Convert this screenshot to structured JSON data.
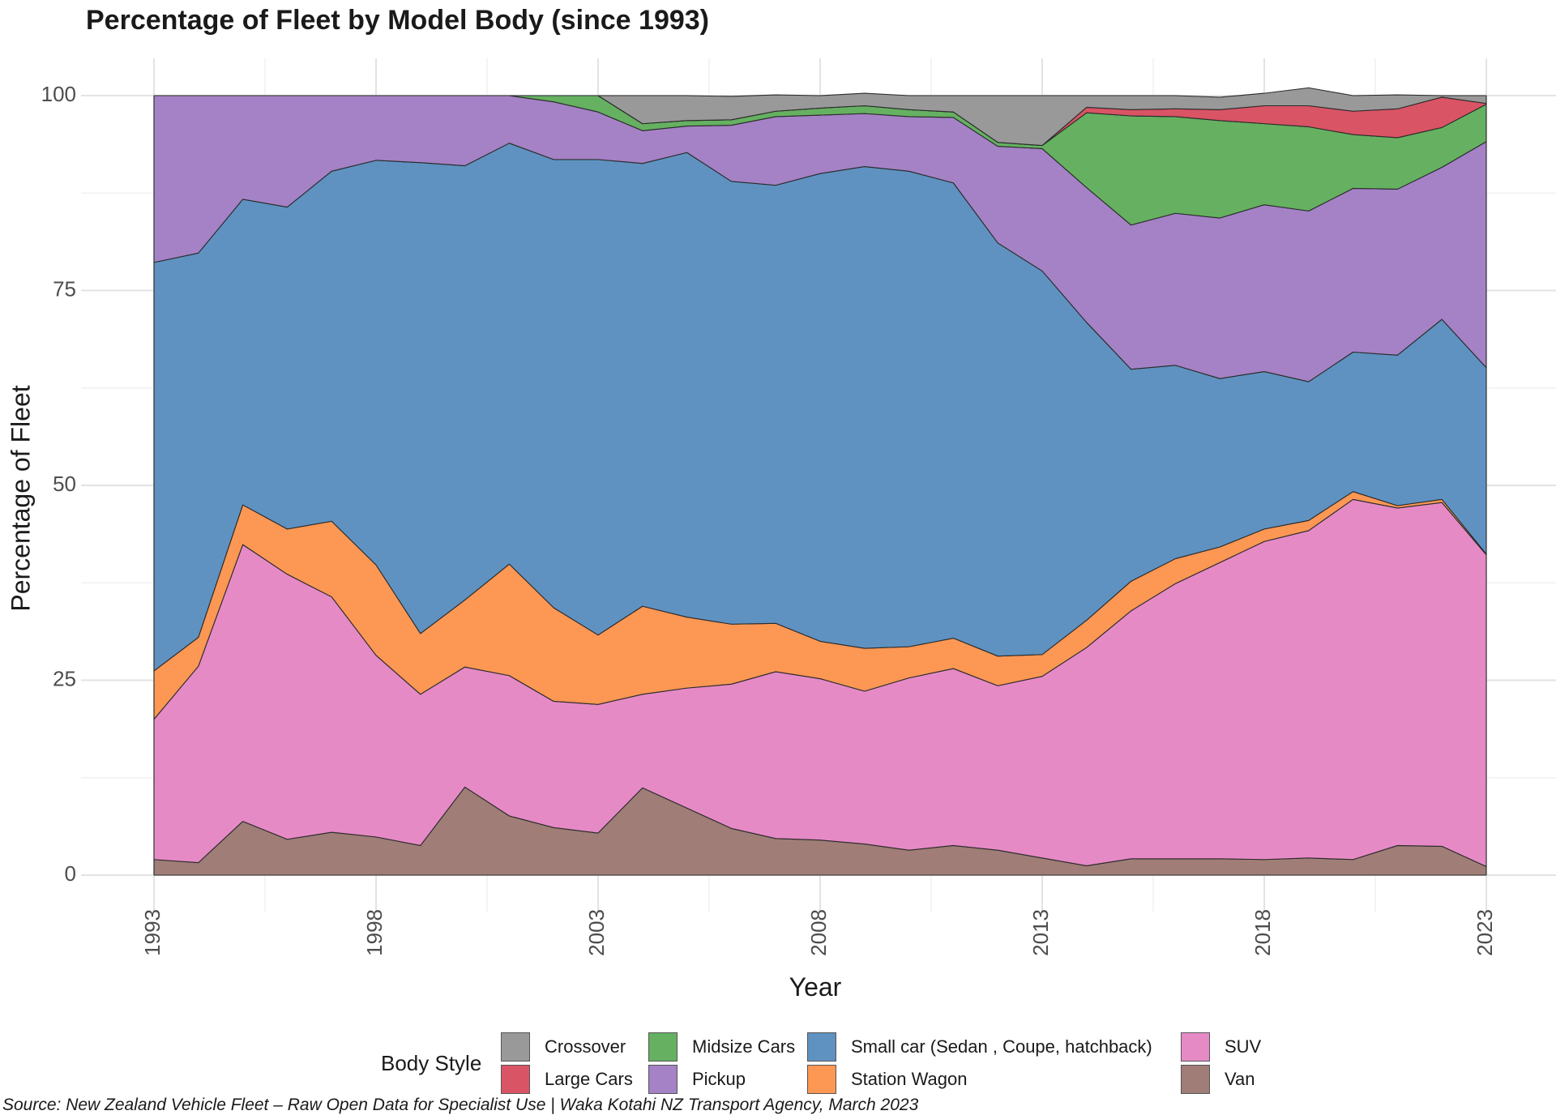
{
  "chart_data": {
    "type": "area",
    "stacked": true,
    "title": "Percentage of Fleet by Model Body (since 1993)",
    "xlabel": "Year",
    "ylabel": "Percentage of Fleet",
    "xlim": [
      1993,
      2023
    ],
    "ylim": [
      0,
      100
    ],
    "x_ticks": [
      "1993",
      "1998",
      "2003",
      "2008",
      "2013",
      "2018",
      "2023"
    ],
    "y_ticks": [
      "0",
      "25",
      "50",
      "75",
      "100"
    ],
    "grid": true,
    "legend_position": "bottom",
    "legend_title": "Body Style",
    "x": [
      1993,
      1994,
      1995,
      1996,
      1997,
      1998,
      1999,
      2000,
      2001,
      2002,
      2003,
      2004,
      2005,
      2006,
      2007,
      2008,
      2009,
      2010,
      2011,
      2012,
      2013,
      2014,
      2015,
      2016,
      2017,
      2018,
      2019,
      2020,
      2021,
      2022,
      2023
    ],
    "series": [
      {
        "name": "Van",
        "color": "#a07d77",
        "values": [
          2.0,
          1.6,
          6.9,
          4.6,
          5.5,
          4.9,
          3.8,
          11.3,
          7.6,
          6.1,
          5.4,
          11.2,
          8.6,
          6.0,
          4.7,
          4.5,
          4.0,
          3.2,
          3.8,
          3.2,
          2.2,
          1.2,
          2.1,
          2.1,
          2.1,
          2.0,
          2.2,
          2.0,
          3.8,
          3.7,
          1.1
        ]
      },
      {
        "name": "SUV",
        "color": "#e68ac6",
        "values": [
          18.0,
          25.2,
          35.5,
          34.0,
          30.2,
          23.3,
          19.4,
          15.4,
          18.0,
          16.2,
          16.5,
          12.0,
          15.4,
          18.5,
          21.4,
          20.7,
          19.6,
          22.1,
          22.7,
          21.1,
          23.3,
          28.0,
          31.8,
          35.3,
          38.0,
          40.8,
          42.0,
          46.2,
          43.3,
          44.1,
          40.0
        ]
      },
      {
        "name": "Station Wagon",
        "color": "#fc9754",
        "values": [
          6.2,
          3.7,
          5.1,
          5.8,
          9.7,
          11.6,
          7.8,
          8.6,
          14.3,
          12.0,
          8.9,
          11.3,
          9.1,
          7.7,
          6.2,
          4.8,
          5.5,
          4.0,
          3.9,
          3.8,
          2.8,
          3.5,
          3.8,
          3.2,
          2.0,
          1.6,
          1.3,
          1.0,
          0.3,
          0.4,
          0.1
        ]
      },
      {
        "name": "Small car (Sedan , Coupe, hatchback)",
        "color": "#5f92c1",
        "values": [
          52.4,
          49.3,
          39.2,
          41.3,
          44.9,
          51.9,
          60.4,
          55.7,
          54.0,
          57.5,
          61.0,
          56.8,
          59.6,
          56.8,
          56.2,
          60.0,
          61.8,
          61.0,
          58.4,
          53.0,
          49.2,
          38.2,
          27.2,
          24.8,
          21.6,
          20.2,
          17.8,
          17.9,
          19.3,
          23.1,
          23.9
        ]
      },
      {
        "name": "Pickup",
        "color": "#a482c5",
        "values": [
          21.4,
          20.2,
          13.3,
          14.3,
          9.7,
          8.3,
          8.6,
          9.0,
          6.1,
          7.4,
          6.1,
          4.2,
          3.4,
          7.2,
          8.8,
          7.5,
          6.8,
          7.0,
          8.4,
          12.4,
          15.7,
          17.3,
          18.5,
          19.5,
          20.6,
          21.4,
          21.9,
          21.0,
          21.3,
          19.5,
          29.0
        ]
      },
      {
        "name": "Midsize Cars",
        "color": "#65b161",
        "values": [
          0,
          0,
          0,
          0,
          0,
          0,
          0,
          0,
          0,
          0.8,
          2.1,
          0.9,
          0.7,
          0.7,
          0.7,
          0.9,
          1.0,
          0.9,
          0.7,
          0.5,
          0.4,
          9.6,
          14.0,
          12.4,
          12.5,
          10.4,
          10.8,
          6.9,
          6.6,
          5.1,
          4.8
        ]
      },
      {
        "name": "Large Cars",
        "color": "#d95465",
        "values": [
          0,
          0,
          0,
          0,
          0,
          0,
          0,
          0,
          0,
          0,
          0,
          0,
          0,
          0,
          0,
          0,
          0,
          0,
          0,
          0,
          0,
          0.7,
          0.8,
          1.0,
          1.4,
          2.3,
          2.7,
          3.0,
          3.7,
          3.9,
          0.1
        ]
      },
      {
        "name": "Crossover",
        "color": "#999999",
        "values": [
          0,
          0,
          0,
          0,
          0,
          0,
          0,
          0,
          0,
          0,
          0,
          3.6,
          3.2,
          3.0,
          2.1,
          1.6,
          1.6,
          1.8,
          2.1,
          6.0,
          6.4,
          1.5,
          1.8,
          1.7,
          1.6,
          1.6,
          2.3,
          2.0,
          1.8,
          0.2,
          1.0
        ]
      }
    ]
  },
  "legend_rows": [
    [
      "Crossover",
      "Midsize Cars",
      "Small car (Sedan , Coupe, hatchback)",
      "SUV"
    ],
    [
      "Large Cars",
      "Pickup",
      "Station Wagon",
      "Van"
    ]
  ],
  "source": "Source: New Zealand Vehicle Fleet – Raw Open Data for Specialist Use | Waka Kotahi NZ Transport Agency, March 2023"
}
